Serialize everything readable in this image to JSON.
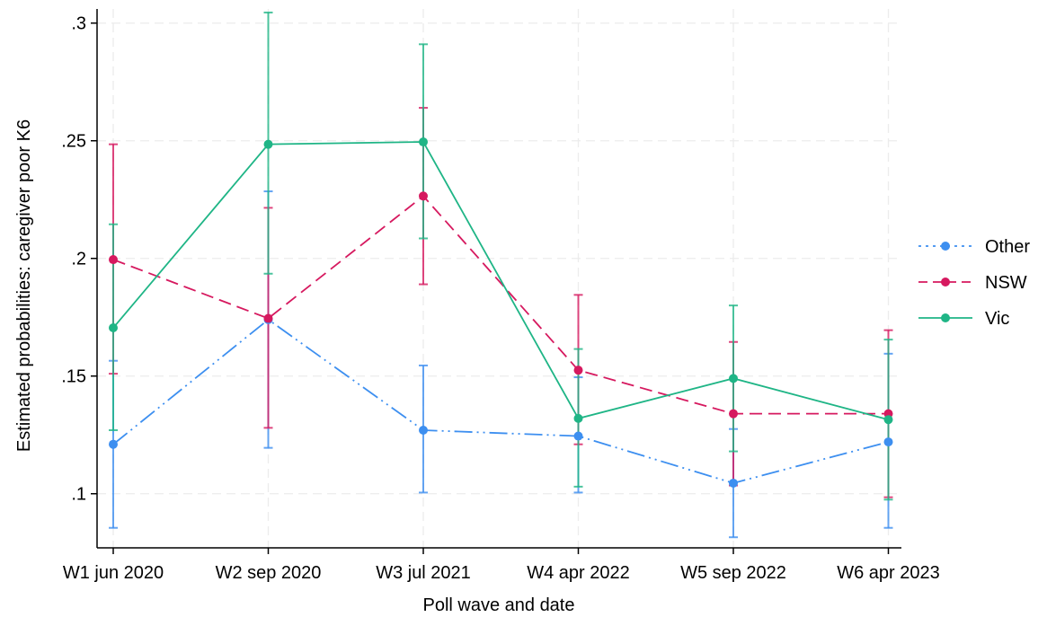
{
  "chart_data": {
    "type": "line",
    "xlabel": "Poll wave and date",
    "ylabel": "Estimated probabilities: caregiver poor K6",
    "categories": [
      "W1 jun 2020",
      "W2 sep 2020",
      "W3 jul 2021",
      "W4 apr 2022",
      "W5 sep 2022",
      "W6 apr 2023"
    ],
    "y_ticks": [
      ".1",
      ".15",
      ".2",
      ".25",
      ".3"
    ],
    "y_tick_values": [
      0.1,
      0.15,
      0.2,
      0.25,
      0.3
    ],
    "ylim": [
      0.077,
      0.306
    ],
    "grid": true,
    "legend_position": "right",
    "series": [
      {
        "name": "Other",
        "color": "#3d8ff0",
        "line_style": "long-dash-dot-dot",
        "values": [
          0.121,
          0.174,
          0.127,
          0.1245,
          0.1045,
          0.122
        ],
        "ci_low": [
          0.0855,
          0.1195,
          0.1005,
          0.1005,
          0.0815,
          0.0855
        ],
        "ci_high": [
          0.1565,
          0.2285,
          0.1545,
          0.1495,
          0.1275,
          0.1595
        ]
      },
      {
        "name": "NSW",
        "color": "#d6195f",
        "line_style": "dash",
        "values": [
          0.1995,
          0.1745,
          0.2265,
          0.1525,
          0.134,
          0.134
        ],
        "ci_low": [
          0.151,
          0.128,
          0.189,
          0.121,
          0.1035,
          0.0985
        ],
        "ci_high": [
          0.2485,
          0.2215,
          0.264,
          0.1845,
          0.1645,
          0.1695
        ]
      },
      {
        "name": "Vic",
        "color": "#1fb586",
        "line_style": "solid",
        "values": [
          0.1705,
          0.2485,
          0.2495,
          0.132,
          0.149,
          0.1315
        ],
        "ci_low": [
          0.127,
          0.1935,
          0.2085,
          0.103,
          0.118,
          0.0975
        ],
        "ci_high": [
          0.2145,
          0.3045,
          0.291,
          0.1615,
          0.18,
          0.1655
        ]
      }
    ]
  }
}
